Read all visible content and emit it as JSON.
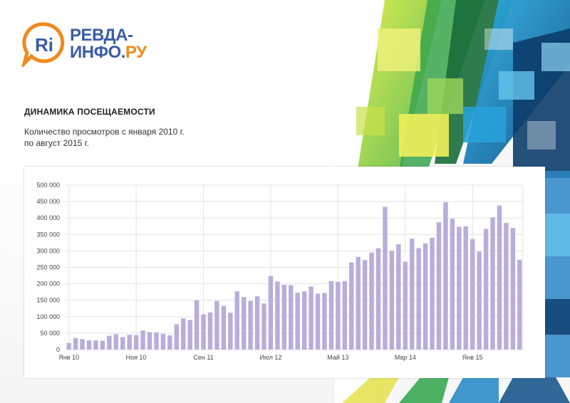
{
  "logo": {
    "mark": "Ri",
    "line1": "РЕВДА-",
    "line2_main": "ИНФО.",
    "line2_suffix": "РУ"
  },
  "title": "ДИНАМИКА ПОСЕЩАЕМОСТИ",
  "subtitle_lines": [
    "Количество просмотров с января 2010 г.",
    "по август 2015 г."
  ],
  "colors": {
    "bar": "#b9addb",
    "grid": "#e3e3e3",
    "brand_blue": "#3b5ca5",
    "brand_orange": "#f08a1c"
  },
  "chart_data": {
    "type": "bar",
    "ylim": [
      0,
      500000
    ],
    "y_ticks": [
      0,
      50000,
      100000,
      150000,
      200000,
      250000,
      300000,
      350000,
      400000,
      450000,
      500000
    ],
    "y_tick_labels": [
      "0",
      "50 000",
      "100 000",
      "150 000",
      "200 000",
      "250 000",
      "300 000",
      "350 000",
      "400 000",
      "450 000",
      "500 000"
    ],
    "x_tick_labels": [
      {
        "label": "Янв 10",
        "index": 0
      },
      {
        "label": "Ноя 10",
        "index": 10
      },
      {
        "label": "Сен 11",
        "index": 20
      },
      {
        "label": "Июл 12",
        "index": 30
      },
      {
        "label": "Май 13",
        "index": 40
      },
      {
        "label": "Мар 14",
        "index": 50
      },
      {
        "label": "Янв 15",
        "index": 60
      }
    ],
    "grid": true,
    "series": [
      {
        "values": [
          20000,
          35000,
          32000,
          28000,
          28000,
          27000,
          42000,
          47000,
          38000,
          45000,
          44000,
          58000,
          53000,
          52000,
          48000,
          43000,
          77000,
          95000,
          90000,
          150000,
          107000,
          113000,
          148000,
          133000,
          112000,
          177000,
          160000,
          148000,
          162000,
          140000,
          224000,
          207000,
          197000,
          196000,
          173000,
          177000,
          192000,
          170000,
          172000,
          208000,
          206000,
          208000,
          265000,
          282000,
          272000,
          295000,
          308000,
          434000,
          300000,
          320000,
          267000,
          337000,
          308000,
          323000,
          340000,
          387000,
          448000,
          398000,
          373000,
          375000,
          336000,
          298000,
          367000,
          402000,
          438000,
          385000,
          370000,
          273000
        ]
      }
    ]
  }
}
